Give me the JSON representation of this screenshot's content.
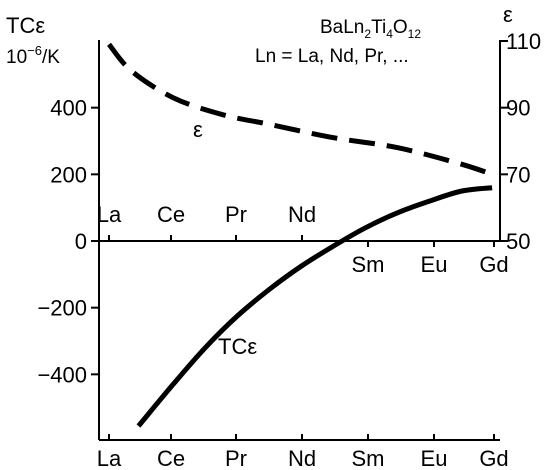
{
  "chart_data": {
    "type": "line",
    "title_line1": {
      "prefix": "BaLn",
      "sub1": "2",
      "mid": "Ti",
      "sub2": "4",
      "tail": "O",
      "sub3": "12"
    },
    "title_line2": "Ln = La, Nd, Pr, ...",
    "left_axis": {
      "label_line1": "TCε",
      "label_line2_prefix": "10",
      "label_line2_sup": "−6",
      "label_line2_suffix": "/K",
      "ylim": [
        -600,
        600
      ],
      "ticks": [
        "400",
        "200",
        "0",
        "−200",
        "−400"
      ],
      "tick_values": [
        400,
        200,
        0,
        -200,
        -400
      ]
    },
    "right_axis": {
      "label": "ε",
      "ylim": [
        50,
        110
      ],
      "ticks": [
        "110",
        "90",
        "70",
        "50"
      ],
      "tick_values": [
        110,
        90,
        70,
        50
      ]
    },
    "categories": [
      "La",
      "Ce",
      "Pr",
      "Nd",
      "Sm",
      "Eu",
      "Gd"
    ],
    "top_category_labels": [
      "La",
      "Ce",
      "Pr",
      "Nd"
    ],
    "middle_category_labels": [
      "Sm",
      "Eu",
      "Gd"
    ],
    "x_positions": [
      0,
      1,
      2,
      3,
      4,
      5,
      6
    ],
    "series": [
      {
        "name": "ε",
        "axis": "right",
        "style": "dashed",
        "x": [
          0,
          0.35,
          1,
          1.75,
          2.5,
          3.5,
          4.5,
          5.5,
          5.97
        ],
        "values": [
          109,
          101,
          93,
          88,
          85,
          81,
          78,
          73,
          70
        ]
      },
      {
        "name": "TCε",
        "axis": "left",
        "style": "solid",
        "x": [
          0.46,
          1,
          1.5,
          2,
          2.5,
          3,
          3.5,
          4,
          4.5,
          5,
          5.5,
          5.97
        ],
        "values": [
          -555,
          -430,
          -320,
          -225,
          -145,
          -75,
          -15,
          40,
          85,
          120,
          150,
          160
        ]
      }
    ],
    "grid": false,
    "legend": "none"
  }
}
